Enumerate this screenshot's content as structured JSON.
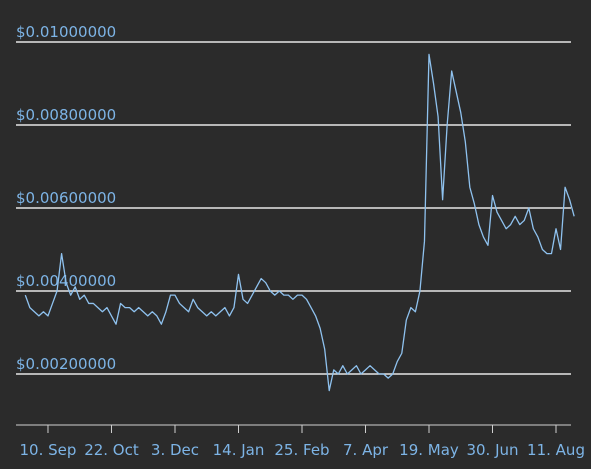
{
  "chart_data": {
    "type": "line",
    "color": "#8fc2ef",
    "grid": true,
    "ylim": [
      0.0008,
      0.011
    ],
    "yticks": [
      {
        "value": 0.002,
        "label": "$0.00200000"
      },
      {
        "value": 0.004,
        "label": "$0.00400000"
      },
      {
        "value": 0.006,
        "label": "$0.00600000"
      },
      {
        "value": 0.008,
        "label": "$0.00800000"
      },
      {
        "value": 0.01,
        "label": "$0.01000000"
      }
    ],
    "categories": [
      null,
      null,
      null,
      null,
      null,
      "10. Sep",
      null,
      null,
      null,
      null,
      null,
      null,
      null,
      null,
      null,
      null,
      null,
      null,
      null,
      "22. Oct",
      null,
      null,
      null,
      null,
      null,
      null,
      null,
      null,
      null,
      null,
      null,
      null,
      null,
      "3. Dec",
      null,
      null,
      null,
      null,
      null,
      null,
      null,
      null,
      null,
      null,
      null,
      null,
      null,
      "14. Jan",
      null,
      null,
      null,
      null,
      null,
      null,
      null,
      null,
      null,
      null,
      null,
      null,
      null,
      "25. Feb",
      null,
      null,
      null,
      null,
      null,
      null,
      null,
      null,
      null,
      null,
      null,
      null,
      null,
      "7. Apr",
      null,
      null,
      null,
      null,
      null,
      null,
      null,
      null,
      null,
      null,
      null,
      null,
      null,
      "19. May",
      null,
      null,
      null,
      null,
      null,
      null,
      null,
      null,
      null,
      null,
      null,
      null,
      null,
      "30. Jun",
      null,
      null,
      null,
      null,
      null,
      null,
      null,
      null,
      null,
      null,
      null,
      null,
      null,
      "11. Aug",
      null,
      null,
      null,
      null
    ],
    "values": [
      0.0039,
      0.0036,
      0.0035,
      0.0034,
      0.0035,
      0.0034,
      0.0037,
      0.004,
      0.0049,
      0.0042,
      0.0039,
      0.0041,
      0.0038,
      0.0039,
      0.0037,
      0.0037,
      0.0036,
      0.0035,
      0.0036,
      0.0034,
      0.0032,
      0.0037,
      0.0036,
      0.0036,
      0.0035,
      0.0036,
      0.0035,
      0.0034,
      0.0035,
      0.0034,
      0.0032,
      0.0035,
      0.0039,
      0.0039,
      0.0037,
      0.0036,
      0.0035,
      0.0038,
      0.0036,
      0.0035,
      0.0034,
      0.0035,
      0.0034,
      0.0035,
      0.0036,
      0.0034,
      0.0036,
      0.0044,
      0.0038,
      0.0037,
      0.0039,
      0.0041,
      0.0043,
      0.0042,
      0.004,
      0.0039,
      0.004,
      0.0039,
      0.0039,
      0.0038,
      0.0039,
      0.0039,
      0.0038,
      0.0036,
      0.0034,
      0.0031,
      0.0026,
      0.0016,
      0.0021,
      0.002,
      0.0022,
      0.002,
      0.0021,
      0.0022,
      0.002,
      0.0021,
      0.0022,
      0.0021,
      0.002,
      0.002,
      0.0019,
      0.002,
      0.0023,
      0.0025,
      0.0033,
      0.0036,
      0.0035,
      0.004,
      0.0052,
      0.0097,
      0.009,
      0.0082,
      0.0062,
      0.008,
      0.0093,
      0.0088,
      0.0083,
      0.0076,
      0.0065,
      0.0061,
      0.0056,
      0.0053,
      0.0051,
      0.0063,
      0.0059,
      0.0057,
      0.0055,
      0.0056,
      0.0058,
      0.0056,
      0.0057,
      0.006,
      0.0055,
      0.0053,
      0.005,
      0.0049,
      0.0049,
      0.0055,
      0.005,
      0.0065,
      0.0062,
      0.0058
    ]
  }
}
